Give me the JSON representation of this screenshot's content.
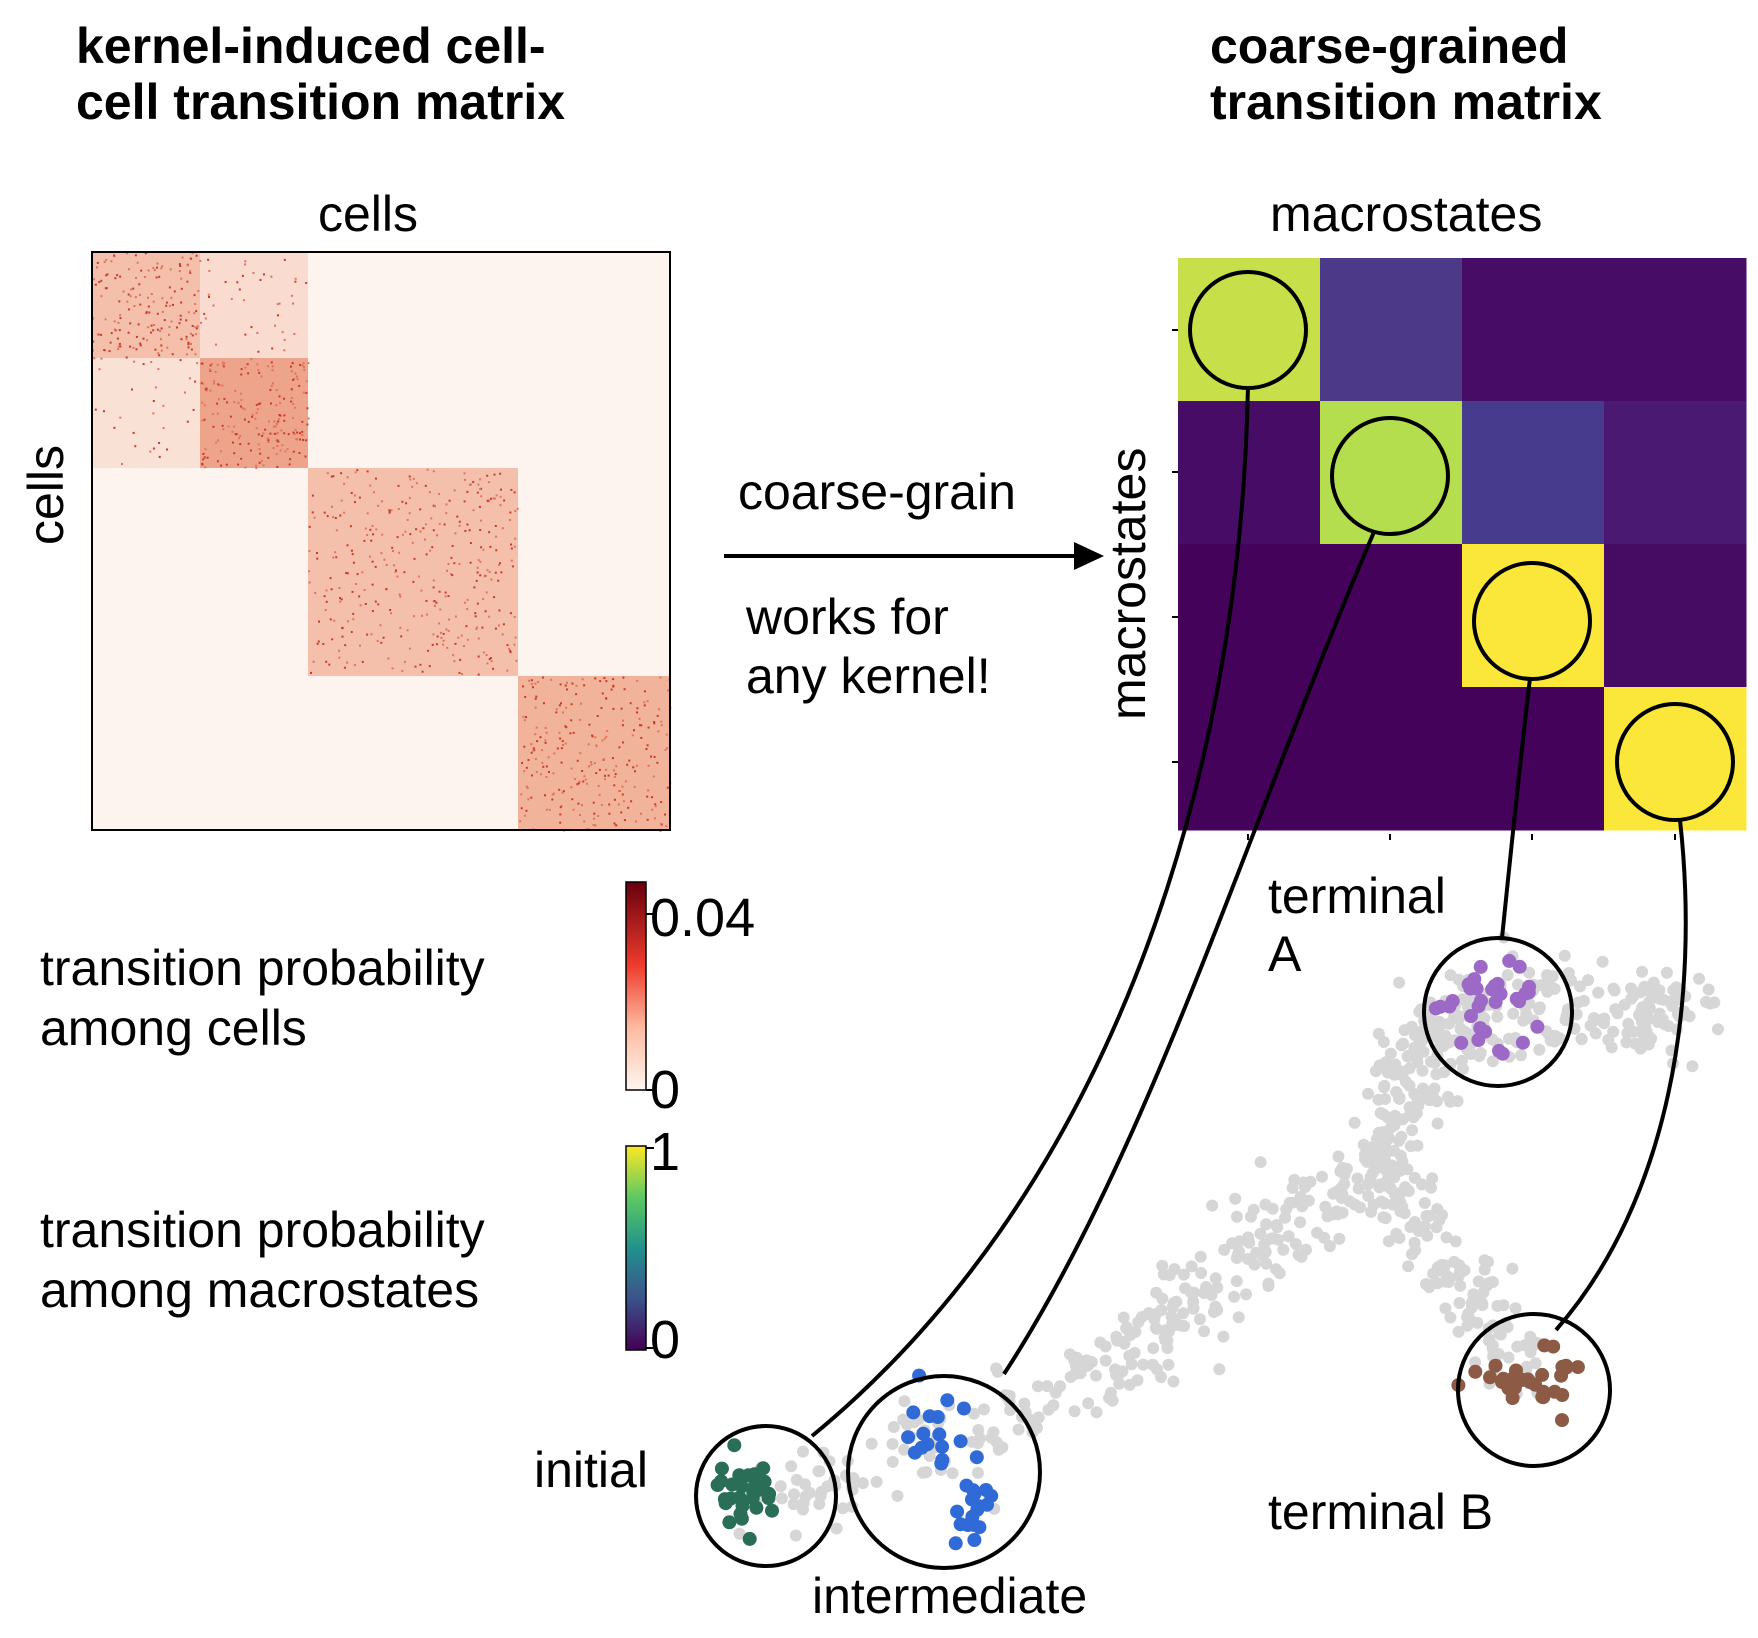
{
  "titles": {
    "left": "kernel-induced cell-\ncell transition matrix",
    "right": "coarse-grained\ntransition matrix"
  },
  "cell_matrix": {
    "axis_top": "cells",
    "axis_left": "cells",
    "colormap": "Reds",
    "blocks": 4
  },
  "macro_matrix": {
    "axis_top": "macrostates",
    "axis_left": "macrostates",
    "colormap": "viridis",
    "values": [
      [
        0.8,
        0.25,
        0.02,
        0.02
      ],
      [
        0.02,
        0.85,
        0.22,
        0.08
      ],
      [
        0.0,
        0.0,
        1.0,
        0.02
      ],
      [
        0.0,
        0.0,
        0.0,
        1.0
      ]
    ],
    "colors": [
      [
        "#c7e04a",
        "#4c3987",
        "#470d66",
        "#470d66"
      ],
      [
        "#470d66",
        "#b4de4e",
        "#463b8c",
        "#4a1a72"
      ],
      [
        "#44025b",
        "#44025b",
        "#fbe73a",
        "#460b63"
      ],
      [
        "#44025b",
        "#44025b",
        "#44025b",
        "#fbe73a"
      ]
    ]
  },
  "arrow": {
    "label_top": "coarse-grain",
    "label_bottom": "works for\nany kernel!"
  },
  "legend": {
    "cell_label": "transition probability\namong cells",
    "cell_max": "0.04",
    "cell_min": "0",
    "macro_label": "transition probability\namong macrostates",
    "macro_max": "1",
    "macro_min": "0"
  },
  "states": {
    "terminal_a": "terminal\nA",
    "terminal_b": "terminal B",
    "initial": "initial",
    "intermediate": "intermediate"
  },
  "colors": {
    "initial": "#2a6e57",
    "intermediate": "#2f6ad6",
    "terminal_a": "#9d69c6",
    "terminal_b": "#8d5a46",
    "background_cells": "#d6d6d6"
  }
}
